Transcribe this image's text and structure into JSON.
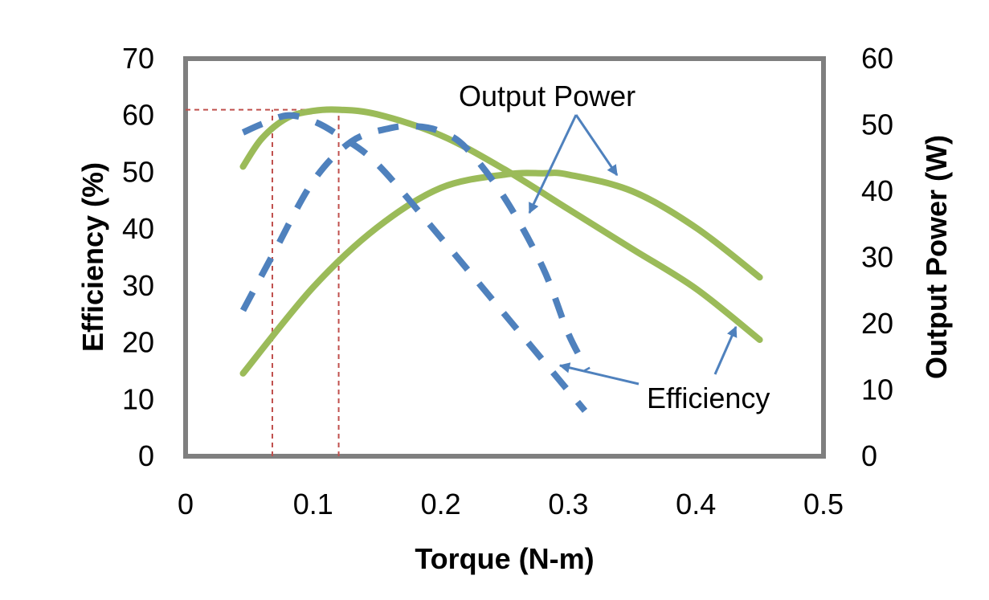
{
  "chart_data": {
    "type": "line",
    "title": "",
    "xlabel": "Torque (N-m)",
    "ylabel": "Efficiency (%)",
    "y2label": "Output Power (W)",
    "xlim": [
      0,
      0.5
    ],
    "ylim": [
      0,
      70
    ],
    "y2lim": [
      0,
      60
    ],
    "x_ticks": [
      "0",
      "0.1",
      "0.2",
      "0.3",
      "0.4",
      "0.5"
    ],
    "y_ticks": [
      "0",
      "10",
      "20",
      "30",
      "40",
      "50",
      "60",
      "70"
    ],
    "y2_ticks": [
      "0",
      "10",
      "20",
      "30",
      "40",
      "50",
      "60"
    ],
    "grid": false,
    "legend": "none",
    "series": [
      {
        "group": "efficiency",
        "style": "solid",
        "color": "#9bbb59",
        "axis": "left",
        "x": [
          0.045,
          0.06,
          0.08,
          0.1,
          0.12,
          0.15,
          0.2,
          0.25,
          0.3,
          0.35,
          0.4,
          0.45
        ],
        "y": [
          51,
          56,
          59.6,
          60.8,
          61,
          60.2,
          56.5,
          50.5,
          43.5,
          36.5,
          29.5,
          20.5
        ]
      },
      {
        "group": "output_power",
        "style": "solid",
        "color": "#9bbb59",
        "axis": "right",
        "x": [
          0.045,
          0.1,
          0.15,
          0.2,
          0.25,
          0.28,
          0.3,
          0.35,
          0.4,
          0.45
        ],
        "y": [
          12.5,
          25.5,
          34.5,
          40.5,
          42.5,
          42.7,
          42.5,
          40,
          34.5,
          27
        ]
      },
      {
        "group": "efficiency",
        "style": "dashed",
        "color": "#4f81bd",
        "axis": "left",
        "x": [
          0.045,
          0.06,
          0.08,
          0.1,
          0.12,
          0.15,
          0.2,
          0.25,
          0.3,
          0.313
        ],
        "y": [
          57,
          58.5,
          60,
          59,
          56.5,
          51.5,
          38.5,
          25,
          11.5,
          8
        ]
      },
      {
        "group": "output_power",
        "style": "dashed",
        "color": "#4f81bd",
        "axis": "right",
        "x": [
          0.045,
          0.07,
          0.1,
          0.13,
          0.16,
          0.18,
          0.2,
          0.22,
          0.25,
          0.28,
          0.3,
          0.315
        ],
        "y": [
          22,
          31,
          41.5,
          47.5,
          49.5,
          49.8,
          49,
          46.5,
          39,
          28.5,
          18.5,
          13
        ]
      }
    ],
    "reference_lines": [
      {
        "x": 0.068,
        "y": 61,
        "color": "#c0504d"
      },
      {
        "x": 0.12,
        "y": 61,
        "color": "#c0504d"
      }
    ],
    "annotations": [
      {
        "text": "Output Power",
        "arrow_color": "#4f81bd"
      },
      {
        "text": "Efficiency",
        "arrow_color": "#4f81bd"
      }
    ]
  }
}
